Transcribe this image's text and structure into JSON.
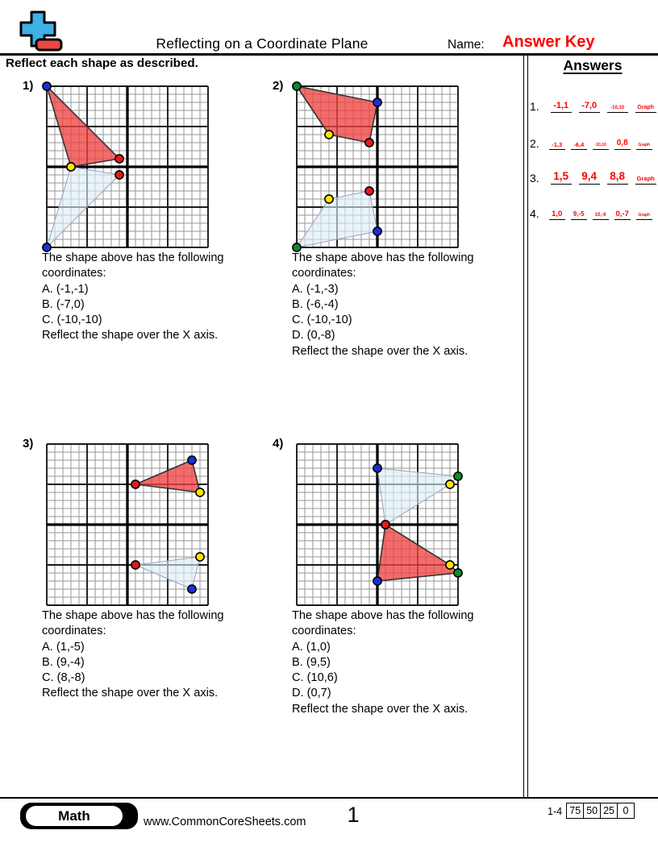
{
  "header": {
    "title": "Reflecting on a Coordinate Plane",
    "name_label": "Name:",
    "name_value": "Answer Key",
    "instruction": "Reflect each shape as described.",
    "logo": {
      "plus_color": "#3fb0e8",
      "minus_color": "#f04545"
    }
  },
  "answers_panel": {
    "heading": "Answers",
    "items": [
      {
        "number": "1.",
        "blanks": [
          {
            "text": "-1,1",
            "size": 11
          },
          {
            "text": "-7,0",
            "size": 11
          },
          {
            "text": "-10,10",
            "size": 6
          },
          {
            "text": "Graph",
            "size": 7
          }
        ]
      },
      {
        "number": "2.",
        "blanks": [
          {
            "text": "-1,3",
            "size": 7.5
          },
          {
            "text": "-6,4",
            "size": 7.5
          },
          {
            "text": "-10,10",
            "size": 5
          },
          {
            "text": "0,8",
            "size": 10
          },
          {
            "text": "Graph",
            "size": 5
          }
        ]
      },
      {
        "number": "3.",
        "blanks": [
          {
            "text": "1,5",
            "size": 13.5
          },
          {
            "text": "9,4",
            "size": 13.5
          },
          {
            "text": "8,8",
            "size": 13.5
          },
          {
            "text": "Graph",
            "size": 7.5
          }
        ]
      },
      {
        "number": "4.",
        "blanks": [
          {
            "text": "1,0",
            "size": 9.5
          },
          {
            "text": "9,-5",
            "size": 8
          },
          {
            "text": "10,-6",
            "size": 6
          },
          {
            "text": "0,-7",
            "size": 9.5
          },
          {
            "text": "Graph",
            "size": 5
          }
        ]
      }
    ]
  },
  "grid_style": {
    "minor_line": "#969696",
    "major_line": "#1a1a1a",
    "axis_line": "#000000",
    "original_fill": "#dcedf6",
    "original_stroke": "#9aa0bf",
    "reflected_fill": "#ee4242",
    "reflected_stroke": "#333333",
    "dot_outline": "#000000"
  },
  "problems": [
    {
      "label": "1)",
      "text_lines": [
        "The shape above has the following",
        "coordinates:",
        "A. (-1,-1)",
        "B. (-7,0)",
        "C. (-10,-10)",
        "Reflect the shape over the X axis."
      ],
      "vertices": [
        {
          "name": "A",
          "color": "#e81818",
          "orig": [
            -1,
            -1
          ],
          "refl": [
            -1,
            1
          ]
        },
        {
          "name": "B",
          "color": "#ffe400",
          "orig": [
            -7,
            0
          ],
          "refl": [
            -7,
            0
          ]
        },
        {
          "name": "C",
          "color": "#1a2fd8",
          "orig": [
            -10,
            -10
          ],
          "refl": [
            -10,
            10
          ]
        }
      ]
    },
    {
      "label": "2)",
      "text_lines": [
        "The shape above has the following",
        "coordinates:",
        "A. (-1,-3)",
        "B. (-6,-4)",
        "C. (-10,-10)",
        "D. (0,-8)",
        "Reflect the shape over the X axis."
      ],
      "vertices": [
        {
          "name": "A",
          "color": "#e81818",
          "orig": [
            -1,
            -3
          ],
          "refl": [
            -1,
            3
          ]
        },
        {
          "name": "B",
          "color": "#ffe400",
          "orig": [
            -6,
            -4
          ],
          "refl": [
            -6,
            4
          ]
        },
        {
          "name": "C",
          "color": "#0e8a28",
          "orig": [
            -10,
            -10
          ],
          "refl": [
            -10,
            10
          ]
        },
        {
          "name": "D",
          "color": "#1a2fd8",
          "orig": [
            0,
            -8
          ],
          "refl": [
            0,
            8
          ]
        }
      ]
    },
    {
      "label": "3)",
      "text_lines": [
        "The shape above has the following",
        "coordinates:",
        "A. (1,-5)",
        "B. (9,-4)",
        "C. (8,-8)",
        "Reflect the shape over the X axis."
      ],
      "vertices": [
        {
          "name": "A",
          "color": "#e81818",
          "orig": [
            1,
            -5
          ],
          "refl": [
            1,
            5
          ]
        },
        {
          "name": "B",
          "color": "#ffe400",
          "orig": [
            9,
            -4
          ],
          "refl": [
            9,
            4
          ]
        },
        {
          "name": "C",
          "color": "#1a2fd8",
          "orig": [
            8,
            -8
          ],
          "refl": [
            8,
            8
          ]
        }
      ]
    },
    {
      "label": "4)",
      "text_lines": [
        "The shape above has the following",
        "coordinates:",
        "A. (1,0)",
        "B. (9,5)",
        "C. (10,6)",
        "D. (0,7)",
        "Reflect the shape over the X axis."
      ],
      "vertices": [
        {
          "name": "A",
          "color": "#e81818",
          "orig": [
            1,
            0
          ],
          "refl": [
            1,
            0
          ]
        },
        {
          "name": "B",
          "color": "#ffe400",
          "orig": [
            9,
            5
          ],
          "refl": [
            9,
            -5
          ]
        },
        {
          "name": "C",
          "color": "#0e8a28",
          "orig": [
            10,
            6
          ],
          "refl": [
            10,
            -6
          ]
        },
        {
          "name": "D",
          "color": "#1a2fd8",
          "orig": [
            0,
            7
          ],
          "refl": [
            0,
            -7
          ]
        }
      ]
    }
  ],
  "footer": {
    "subject": "Math",
    "site_url": "www.CommonCoreSheets.com",
    "page_number": "1",
    "score_range": "1-4",
    "score_cells": [
      "75",
      "50",
      "25",
      "0"
    ]
  }
}
